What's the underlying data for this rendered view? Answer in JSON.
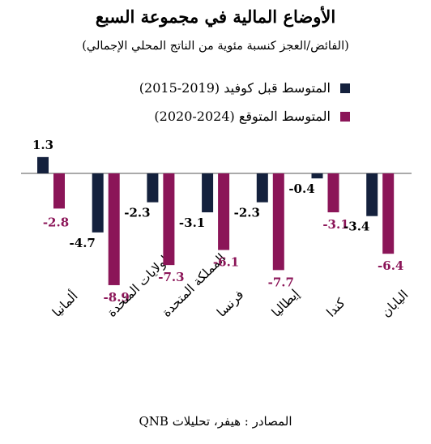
{
  "chart_data": {
    "type": "bar",
    "title": "الأوضاع المالية في مجموعة السبع",
    "subtitle": "(الفائض/العجز كنسبة مئوية من الناتج المحلي الإجمالي)",
    "categories": [
      "ألمانيا",
      "الولايات المتحدة",
      "المملكة المتحدة",
      "فرنسا",
      "إيطاليا",
      "كندا",
      "اليابان"
    ],
    "series": [
      {
        "name": "المتوسط قبل كوفيد (2019-2015)",
        "values": [
          1.3,
          -4.7,
          -2.3,
          -3.1,
          -2.3,
          -0.4,
          -3.4
        ],
        "color": "#14213d"
      },
      {
        "name": "المتوسط المتوقع (2024-2020)",
        "values": [
          -2.8,
          -8.9,
          -7.3,
          -6.1,
          -7.7,
          -3.1,
          -6.4
        ],
        "color": "#8b1558"
      }
    ],
    "value_labels": [
      [
        "1.3",
        "-4.7",
        "-2.3",
        "-3.1",
        "-2.3",
        "-0.4",
        "-3.4"
      ],
      [
        "-2.8",
        "-8.9",
        "-7.3",
        "-6.1",
        "-7.7",
        "-3.1",
        "-6.4"
      ]
    ],
    "ylim": [
      -8.9,
      1.3
    ],
    "grid": false,
    "legend": "top",
    "source": "المصادر : هيفر، تحليلات QNB"
  }
}
